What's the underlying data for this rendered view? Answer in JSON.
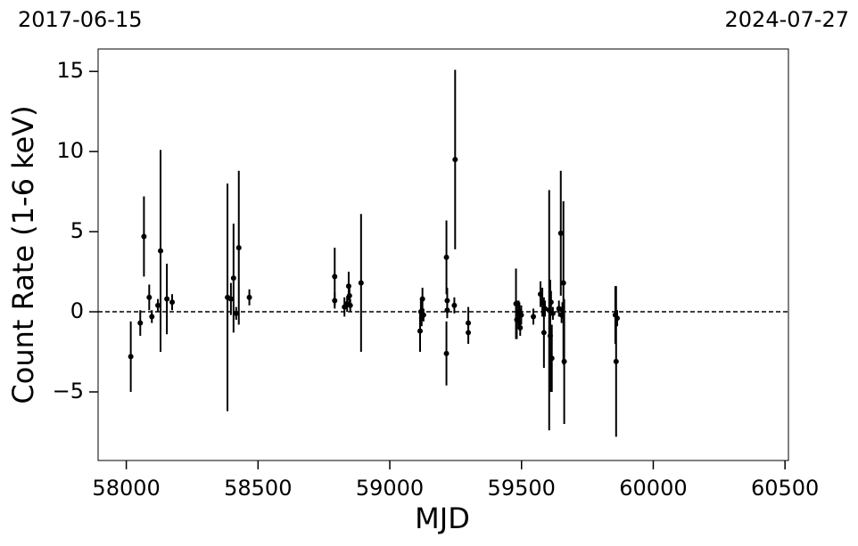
{
  "chart_data": {
    "type": "scatter",
    "xlabel": "MJD",
    "ylabel": "Count Rate (1-6 keV)",
    "corner_left": "2017-06-15",
    "corner_right": "2024-07-27",
    "xlim": [
      57893,
      60513
    ],
    "ylim": [
      -9.28,
      16.4
    ],
    "xticks": [
      58000,
      58500,
      59000,
      59500,
      60000,
      60500
    ],
    "yticks": [
      {
        "value": -5,
        "label": "−5"
      },
      0,
      5,
      10,
      15
    ],
    "hline": 0,
    "color": "#000000",
    "x": [
      58017,
      58053,
      58067,
      58087,
      58097,
      58120,
      58130,
      58154,
      58174,
      58384,
      58397,
      58407,
      58417,
      58427,
      58467,
      58791,
      58791,
      58828,
      58838,
      58844,
      58847,
      58850,
      58891,
      59115,
      59118,
      59121,
      59124,
      59128,
      59215,
      59215,
      59218,
      59218,
      59245,
      59248,
      59298,
      59298,
      59479,
      59482,
      59489,
      59492,
      59495,
      59499,
      59545,
      59572,
      59579,
      59585,
      59589,
      59605,
      59609,
      59612,
      59615,
      59619,
      59642,
      59649,
      59652,
      59655,
      59659,
      59662,
      59856,
      59859,
      59863
    ],
    "y": [
      -2.8,
      -0.7,
      4.7,
      0.9,
      -0.3,
      0.4,
      3.8,
      0.8,
      0.6,
      0.9,
      0.8,
      2.1,
      -0.1,
      4.0,
      0.9,
      2.2,
      0.7,
      0.3,
      0.5,
      1.6,
      1.0,
      0.4,
      1.8,
      -1.2,
      0.0,
      -0.4,
      0.8,
      -0.2,
      3.4,
      -2.6,
      0.7,
      0.1,
      0.4,
      9.5,
      -0.7,
      -1.3,
      0.5,
      -0.5,
      -0.1,
      0.0,
      -1.0,
      -0.2,
      -0.3,
      1.1,
      0.6,
      -1.3,
      0.2,
      0.1,
      -1.5,
      0.6,
      -2.9,
      -0.1,
      0.2,
      4.9,
      -0.2,
      0.1,
      1.8,
      -3.1,
      -0.2,
      -3.1,
      -0.4
    ],
    "yerr": [
      2.2,
      0.8,
      2.5,
      0.8,
      0.4,
      0.4,
      6.3,
      2.2,
      0.5,
      7.1,
      1.0,
      3.4,
      0.4,
      4.8,
      0.5,
      1.8,
      0.5,
      0.6,
      0.5,
      0.9,
      0.6,
      0.4,
      4.3,
      1.3,
      0.8,
      0.5,
      0.7,
      0.4,
      2.3,
      2.0,
      0.8,
      0.5,
      0.5,
      5.6,
      1.0,
      0.7,
      2.2,
      1.2,
      0.8,
      0.6,
      0.5,
      0.6,
      0.5,
      0.8,
      0.9,
      2.2,
      0.5,
      7.5,
      3.5,
      0.7,
      2.1,
      0.4,
      0.5,
      3.9,
      0.5,
      0.5,
      5.1,
      3.9,
      1.8,
      4.7,
      0.5
    ]
  }
}
